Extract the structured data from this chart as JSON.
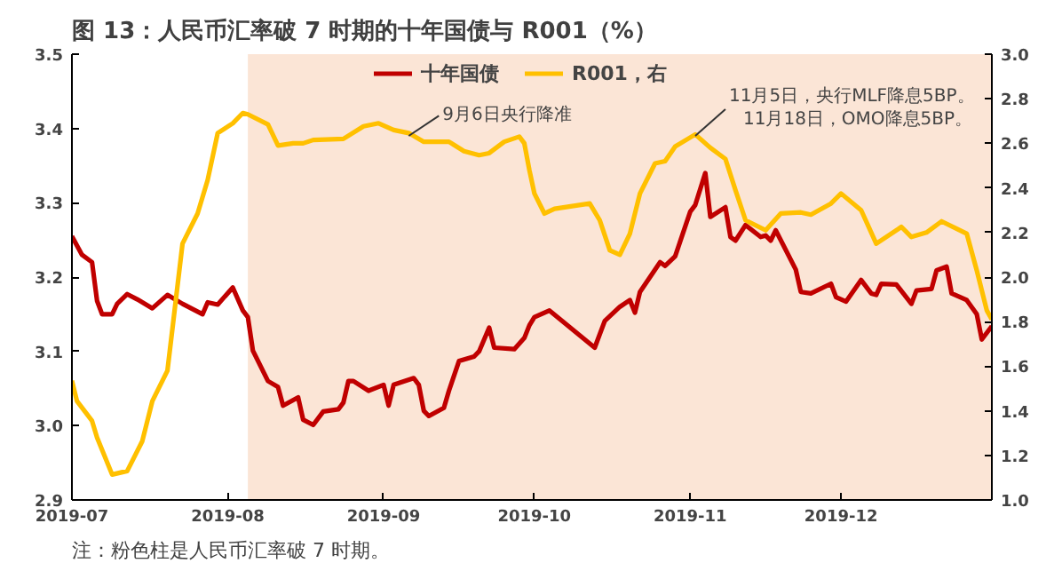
{
  "chart_data": {
    "type": "line",
    "title": "图 13：人民币汇率破 7 时期的十年国债与 R001（%）",
    "annotations": [
      {
        "text": "9月6日央行降准",
        "x": "2019-09-06",
        "y": 3.39
      },
      {
        "text": "11月5日，央行MLF降息5BP。\n11月18日，OMO降息5BP。",
        "x": "2019-11-02",
        "y": 3.39
      },
      "注：粉色柱是人民币汇率破 7 时期。"
    ],
    "series": [
      {
        "name": "十年国债",
        "color": "#c00000",
        "x": [
          "2019-07-01",
          "2019-07-03",
          "2019-07-05",
          "2019-07-06",
          "2019-07-07",
          "2019-07-09",
          "2019-07-10",
          "2019-07-12",
          "2019-07-14",
          "2019-07-17",
          "2019-07-20",
          "2019-07-23",
          "2019-07-27",
          "2019-07-28",
          "2019-07-30",
          "2019-08-02",
          "2019-08-04",
          "2019-08-05",
          "2019-08-06",
          "2019-08-09",
          "2019-08-11",
          "2019-08-12",
          "2019-08-15",
          "2019-08-16",
          "2019-08-18",
          "2019-08-20",
          "2019-08-23",
          "2019-08-24",
          "2019-08-25",
          "2019-08-26",
          "2019-08-29",
          "2019-09-01",
          "2019-09-02",
          "2019-09-03",
          "2019-09-07",
          "2019-09-08",
          "2019-09-09",
          "2019-09-10",
          "2019-09-13",
          "2019-09-14",
          "2019-09-16",
          "2019-09-19",
          "2019-09-20",
          "2019-09-22",
          "2019-09-23",
          "2019-09-27",
          "2019-09-29",
          "2019-09-30",
          "2019-10-01",
          "2019-10-04",
          "2019-10-13",
          "2019-10-15",
          "2019-10-18",
          "2019-10-20",
          "2019-10-21",
          "2019-10-22",
          "2019-10-26",
          "2019-10-27",
          "2019-10-29",
          "2019-11-01",
          "2019-11-02",
          "2019-11-04",
          "2019-11-05",
          "2019-11-08",
          "2019-11-09",
          "2019-11-10",
          "2019-11-12",
          "2019-11-15",
          "2019-11-16",
          "2019-11-17",
          "2019-11-18",
          "2019-11-22",
          "2019-11-23",
          "2019-11-25",
          "2019-11-29",
          "2019-11-30",
          "2019-12-02",
          "2019-12-05",
          "2019-12-07",
          "2019-12-08",
          "2019-12-09",
          "2019-12-12",
          "2019-12-15",
          "2019-12-16",
          "2019-12-19",
          "2019-12-20",
          "2019-12-22",
          "2019-12-23",
          "2019-12-26",
          "2019-12-28",
          "2019-12-29",
          "2019-12-31"
        ],
        "values": [
          3.255,
          3.23,
          3.22,
          3.168,
          3.15,
          3.15,
          3.164,
          3.177,
          3.17,
          3.158,
          3.176,
          3.164,
          3.15,
          3.166,
          3.163,
          3.186,
          3.155,
          3.146,
          3.101,
          3.06,
          3.052,
          3.027,
          3.038,
          3.008,
          3.001,
          3.019,
          3.022,
          3.031,
          3.06,
          3.06,
          3.047,
          3.055,
          3.027,
          3.055,
          3.064,
          3.055,
          3.02,
          3.013,
          3.024,
          3.047,
          3.087,
          3.093,
          3.1,
          3.132,
          3.105,
          3.103,
          3.118,
          3.135,
          3.146,
          3.155,
          3.105,
          3.141,
          3.16,
          3.169,
          3.152,
          3.18,
          3.22,
          3.215,
          3.228,
          3.288,
          3.297,
          3.34,
          3.281,
          3.294,
          3.254,
          3.249,
          3.27,
          3.254,
          3.256,
          3.249,
          3.263,
          3.21,
          3.18,
          3.178,
          3.191,
          3.173,
          3.167,
          3.196,
          3.178,
          3.176,
          3.191,
          3.19,
          3.164,
          3.182,
          3.184,
          3.209,
          3.214,
          3.178,
          3.169,
          3.15,
          3.116,
          3.134
        ]
      },
      {
        "name": "R001，右",
        "color": "#ffc000",
        "axis": "y2",
        "x": [
          "2019-07-01",
          "2019-07-02",
          "2019-07-05",
          "2019-07-06",
          "2019-07-09",
          "2019-07-12",
          "2019-07-15",
          "2019-07-17",
          "2019-07-20",
          "2019-07-23",
          "2019-07-26",
          "2019-07-28",
          "2019-07-30",
          "2019-08-02",
          "2019-08-04",
          "2019-08-05",
          "2019-08-09",
          "2019-08-11",
          "2019-08-14",
          "2019-08-16",
          "2019-08-18",
          "2019-08-24",
          "2019-08-28",
          "2019-08-31",
          "2019-09-03",
          "2019-09-06",
          "2019-09-09",
          "2019-09-14",
          "2019-09-17",
          "2019-09-20",
          "2019-09-22",
          "2019-09-25",
          "2019-09-28",
          "2019-09-29",
          "2019-09-30",
          "2019-10-01",
          "2019-10-03",
          "2019-10-05",
          "2019-10-12",
          "2019-10-14",
          "2019-10-16",
          "2019-10-18",
          "2019-10-20",
          "2019-10-22",
          "2019-10-25",
          "2019-10-27",
          "2019-10-29",
          "2019-11-02",
          "2019-11-05",
          "2019-11-08",
          "2019-11-10",
          "2019-11-12",
          "2019-11-16",
          "2019-11-19",
          "2019-11-23",
          "2019-11-25",
          "2019-11-29",
          "2019-12-01",
          "2019-12-05",
          "2019-12-08",
          "2019-12-13",
          "2019-12-15",
          "2019-12-18",
          "2019-12-21",
          "2019-12-26",
          "2019-12-28",
          "2019-12-30",
          "2019-12-31"
        ],
        "values": [
          1.535,
          1.444,
          1.355,
          1.28,
          1.114,
          1.13,
          1.264,
          1.444,
          1.58,
          2.15,
          2.285,
          2.435,
          2.646,
          2.69,
          2.736,
          2.73,
          2.685,
          2.59,
          2.6,
          2.6,
          2.615,
          2.62,
          2.676,
          2.69,
          2.66,
          2.646,
          2.607,
          2.607,
          2.565,
          2.547,
          2.556,
          2.607,
          2.63,
          2.6,
          2.48,
          2.375,
          2.285,
          2.306,
          2.33,
          2.255,
          2.12,
          2.1,
          2.195,
          2.375,
          2.51,
          2.52,
          2.586,
          2.64,
          2.58,
          2.53,
          2.39,
          2.255,
          2.21,
          2.285,
          2.29,
          2.28,
          2.33,
          2.375,
          2.3,
          2.15,
          2.225,
          2.18,
          2.2,
          2.25,
          2.195,
          2.03,
          1.85,
          1.81
        ]
      }
    ],
    "xlim": [
      "2019-07-01",
      "2019-12-31"
    ],
    "xticks": [
      {
        "value": "2019-07-01",
        "label": "2019-07"
      },
      {
        "value": "2019-08-01",
        "label": "2019-08"
      },
      {
        "value": "2019-09-01",
        "label": "2019-09"
      },
      {
        "value": "2019-10-01",
        "label": "2019-10"
      },
      {
        "value": "2019-11-01",
        "label": "2019-11"
      },
      {
        "value": "2019-12-01",
        "label": "2019-12"
      }
    ],
    "ylim": [
      2.9,
      3.5
    ],
    "yticks": [
      2.9,
      {
        "value": 3.0,
        "label": "3.0"
      },
      3.1,
      3.2,
      3.3,
      3.4,
      3.5
    ],
    "y2lim": [
      1.0,
      3.0
    ],
    "y2ticks": [
      {
        "value": 1.0,
        "label": "1.0"
      },
      1.2,
      1.4,
      1.6,
      1.8,
      {
        "value": 2.0,
        "label": "2.0"
      },
      2.2,
      2.4,
      2.6,
      2.8,
      {
        "value": 3.0,
        "label": "3.0"
      }
    ],
    "bands": [
      {
        "axis": "x",
        "from": "2019-08-05",
        "to": "2019-12-31",
        "color": "#fbe5d6"
      }
    ],
    "legend": "top",
    "grid": false,
    "marker": "none",
    "line_style": "solid"
  }
}
